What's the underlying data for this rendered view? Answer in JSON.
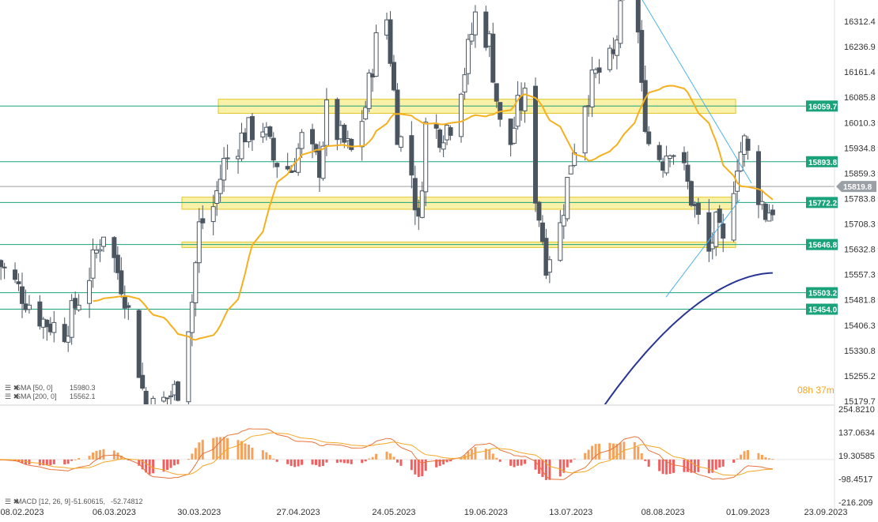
{
  "chart_data": {
    "type": "candlestick",
    "price_axis": {
      "ticks": [
        "16312.4",
        "16236.9",
        "16161.4",
        "16085.8",
        "16010.3",
        "15934.8",
        "15859.3",
        "15783.8",
        "15708.3",
        "15632.8",
        "15557.3",
        "15481.8",
        "15406.3",
        "15330.8",
        "15255.2",
        "15179.7"
      ],
      "range": [
        15179.7,
        16388
      ],
      "current_price": "15819.8"
    },
    "date_axis": {
      "ticks": [
        "08.02.2023",
        "06.03.2023",
        "30.03.2023",
        "27.04.2023",
        "24.05.2023",
        "19.06.2023",
        "13.07.2023",
        "08.08.2023",
        "01.09.2023",
        "23.09.2023"
      ]
    },
    "horizontal_levels": [
      {
        "label": "16059.7",
        "value": 16059.7
      },
      {
        "label": "15893.8",
        "value": 15893.8
      },
      {
        "label": "15772.2",
        "value": 15772.2
      },
      {
        "label": "15646.8",
        "value": 15646.8
      },
      {
        "label": "15503.2",
        "value": 15503.2
      },
      {
        "label": "15454.0",
        "value": 15454.0
      }
    ],
    "zones": [
      {
        "low": 16038,
        "high": 16080
      },
      {
        "low": 15752,
        "high": 15788
      },
      {
        "low": 15638,
        "high": 15654
      }
    ],
    "indicators": {
      "sma50": {
        "label": "SMA [50, 0]",
        "value": "15980.3",
        "color": "#f5b020"
      },
      "sma200": {
        "label": "SMA [200, 0]",
        "value": "15562.1",
        "color": "#283593"
      }
    },
    "macd": {
      "label": "MACD [12, 26, 9]",
      "values": [
        "-51.60615,",
        "-52.74812"
      ],
      "ticks": [
        "254.8210",
        "137.0634",
        "19.30585",
        "-98.4517",
        "-216.209"
      ],
      "range": [
        -216.209,
        254.821
      ]
    },
    "countdown": {
      "hours": "08",
      "hours_unit": "h",
      "minutes": "37",
      "minutes_unit": "m"
    },
    "colors": {
      "bull": "#ffffff",
      "bear": "#4a5560",
      "level": "#1aa37a",
      "zone": "#f5e663",
      "trend": "#4fb3e6",
      "macd_up": "#f5a25d",
      "macd_down": "#f06060"
    }
  }
}
